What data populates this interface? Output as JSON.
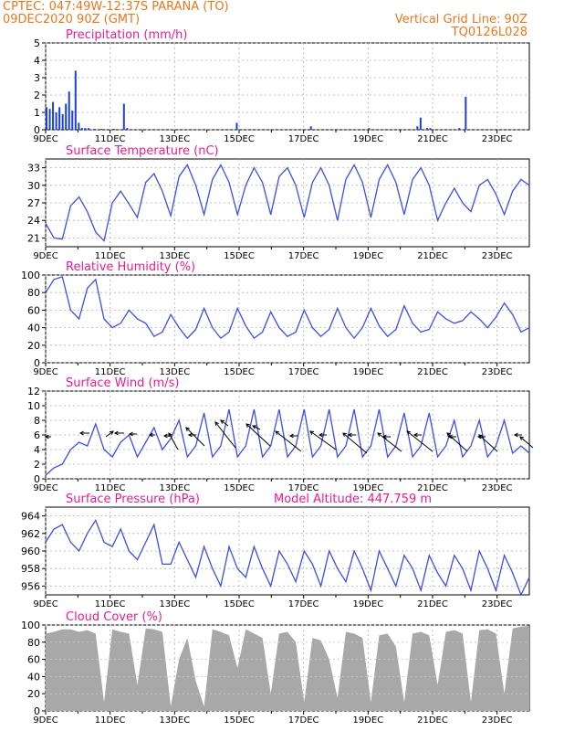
{
  "header": {
    "line1": "CPTEC:   047:49W-12:37S   PARANA (TO)",
    "line2": "09DEC2020 90Z (GMT)",
    "right1": "Vertical Grid Line: 90Z",
    "right2": "TQ0126L028"
  },
  "colors": {
    "header": "#e8771c",
    "title": "#e61e8c",
    "line": "#3b4fe0",
    "bar": "#1c3fe0",
    "cloud": "#a8a8a8",
    "arrow": "#000000"
  },
  "chart_data": [
    {
      "type": "bar",
      "title": "Precipitation (mm/h)",
      "ylim": [
        0,
        5
      ],
      "yticks": [
        "0",
        "1",
        "2",
        "3",
        "4",
        "5"
      ],
      "xticks": [
        "9DEC",
        "11DEC",
        "13DEC",
        "15DEC",
        "17DEC",
        "19DEC",
        "21DEC",
        "23DEC"
      ],
      "x": [
        0.0,
        0.1,
        0.2,
        0.3,
        0.4,
        0.5,
        0.6,
        0.7,
        0.8,
        0.9,
        1.0,
        1.1,
        1.2,
        1.3,
        1.5,
        1.7,
        2.1,
        2.4,
        2.5,
        5.9,
        8.2,
        10.0,
        11.5,
        11.6,
        11.8,
        11.9,
        12.8,
        13.0
      ],
      "values": [
        1.3,
        1.2,
        1.6,
        1.0,
        1.3,
        0.9,
        1.5,
        2.2,
        1.1,
        3.4,
        0.4,
        0.1,
        0.1,
        0.1,
        0.05,
        0.05,
        0.05,
        1.5,
        0.1,
        0.4,
        0.2,
        0.1,
        0.2,
        0.7,
        0.1,
        0.1,
        0.1,
        1.9
      ]
    },
    {
      "type": "line",
      "title": "Surface Temperature (nC)",
      "ylim": [
        19.5,
        34.5
      ],
      "yticks": [
        "21",
        "24",
        "27",
        "30",
        "33"
      ],
      "xticks": [
        "9DEC",
        "11DEC",
        "13DEC",
        "15DEC",
        "17DEC",
        "19DEC",
        "21DEC",
        "23DEC"
      ],
      "series": [
        {
          "values": [
            23.5,
            21.0,
            20.8,
            26.5,
            28.0,
            25.5,
            22.0,
            20.5,
            27.0,
            29.0,
            26.8,
            24.5,
            30.5,
            32.0,
            29.0,
            24.8,
            31.5,
            33.5,
            30.0,
            25.0,
            31.0,
            33.5,
            30.5,
            25.0,
            30.0,
            33.0,
            30.5,
            25.0,
            31.5,
            33.0,
            30.0,
            24.5,
            30.5,
            33.0,
            30.0,
            24.0,
            31.0,
            33.5,
            30.5,
            24.5,
            31.0,
            33.5,
            30.5,
            25.0,
            31.0,
            33.0,
            30.0,
            24.0,
            27.0,
            29.5,
            27.0,
            25.5,
            30.0,
            31.0,
            28.5,
            25.0,
            29.0,
            31.0,
            30.0
          ]
        }
      ]
    },
    {
      "type": "line",
      "title": "Relative Humidity (%)",
      "ylim": [
        0,
        100
      ],
      "yticks": [
        "0",
        "20",
        "40",
        "60",
        "80",
        "100"
      ],
      "xticks": [
        "9DEC",
        "11DEC",
        "13DEC",
        "15DEC",
        "17DEC",
        "19DEC",
        "21DEC",
        "23DEC"
      ],
      "series": [
        {
          "values": [
            80,
            95,
            98,
            60,
            50,
            85,
            95,
            50,
            40,
            45,
            60,
            50,
            45,
            30,
            35,
            55,
            40,
            28,
            38,
            62,
            40,
            28,
            35,
            62,
            42,
            28,
            35,
            58,
            40,
            30,
            35,
            60,
            40,
            30,
            38,
            62,
            40,
            28,
            40,
            62,
            42,
            30,
            38,
            65,
            45,
            35,
            38,
            58,
            50,
            45,
            48,
            58,
            50,
            40,
            52,
            68,
            55,
            35,
            40
          ]
        }
      ]
    },
    {
      "type": "line",
      "title": "Surface Wind (m/s)",
      "ylim": [
        0,
        12
      ],
      "yticks": [
        "0",
        "2",
        "4",
        "6",
        "8",
        "10",
        "12"
      ],
      "xticks": [
        "9DEC",
        "11DEC",
        "13DEC",
        "15DEC",
        "17DEC",
        "19DEC",
        "21DEC",
        "23DEC"
      ],
      "series": [
        {
          "values": [
            0.5,
            1.5,
            2.0,
            4.0,
            5.0,
            4.5,
            7.5,
            4.0,
            3.0,
            5.0,
            6.0,
            3.0,
            5.0,
            7.0,
            4.0,
            5.5,
            8.0,
            3.0,
            4.5,
            9.0,
            3.0,
            4.5,
            9.5,
            3.0,
            4.5,
            9.5,
            3.0,
            4.5,
            9.5,
            3.0,
            4.5,
            9.5,
            3.0,
            4.5,
            9.5,
            3.0,
            4.5,
            9.5,
            3.0,
            4.5,
            9.5,
            3.0,
            4.5,
            9.0,
            3.0,
            4.5,
            9.0,
            3.0,
            4.5,
            8.0,
            3.0,
            4.5,
            8.0,
            3.0,
            4.5,
            8.0,
            3.5,
            4.5,
            3.5
          ]
        }
      ]
    },
    {
      "type": "line",
      "title": "Surface Pressure (hPa)",
      "annotation": "Model Altitude: 447.759  m",
      "ylim": [
        955,
        965
      ],
      "yticks": [
        "956",
        "958",
        "960",
        "962",
        "964"
      ],
      "xticks": [
        "9DEC",
        "11DEC",
        "13DEC",
        "15DEC",
        "17DEC",
        "19DEC",
        "21DEC",
        "23DEC"
      ],
      "series": [
        {
          "values": [
            961,
            962.5,
            963,
            961,
            960,
            962,
            963.5,
            961,
            960.5,
            962.5,
            960,
            959,
            961,
            963,
            958.5,
            958.5,
            961,
            959,
            957,
            960.5,
            958,
            956,
            960.5,
            958,
            957,
            960.5,
            958,
            956,
            960,
            958.5,
            956.5,
            960,
            958.5,
            956,
            960,
            958,
            956.5,
            960,
            958,
            955.5,
            960,
            958,
            956,
            959.5,
            958,
            955.5,
            959.5,
            957.5,
            956,
            959.5,
            958,
            955.5,
            960,
            958,
            955.5,
            959.5,
            957.5,
            955,
            957
          ]
        }
      ]
    },
    {
      "type": "area",
      "title": "Cloud Cover (%)",
      "ylim": [
        0,
        100
      ],
      "yticks": [
        "0",
        "20",
        "40",
        "60",
        "80",
        "100"
      ],
      "xticks": [
        "9DEC",
        "11DEC",
        "13DEC",
        "15DEC",
        "17DEC",
        "19DEC",
        "21DEC",
        "23DEC"
      ],
      "series": [
        {
          "values": [
            90,
            92,
            95,
            95,
            92,
            94,
            90,
            10,
            95,
            92,
            90,
            30,
            96,
            95,
            92,
            5,
            60,
            85,
            35,
            5,
            95,
            92,
            88,
            50,
            95,
            90,
            85,
            20,
            90,
            92,
            80,
            10,
            85,
            82,
            60,
            15,
            92,
            90,
            85,
            10,
            88,
            90,
            75,
            10,
            90,
            92,
            88,
            30,
            92,
            94,
            90,
            10,
            94,
            95,
            90,
            20,
            96,
            98,
            99
          ]
        }
      ]
    }
  ]
}
